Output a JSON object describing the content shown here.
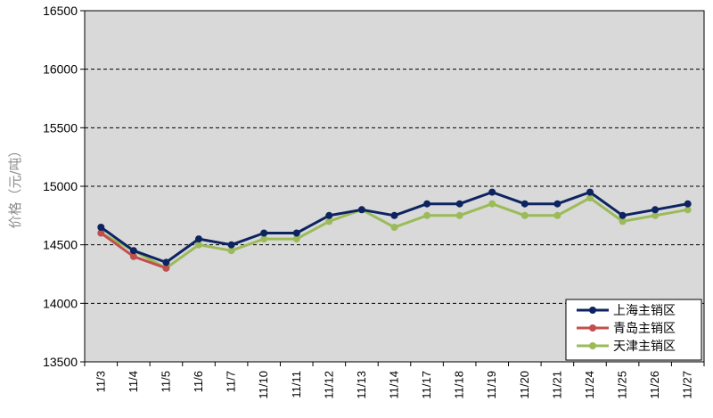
{
  "chart_data": {
    "type": "line",
    "title": "",
    "xlabel": "",
    "ylabel": "价格（元/吨）",
    "ylim": [
      13500,
      16500
    ],
    "yticks": [
      13500,
      14000,
      14500,
      15000,
      15500,
      16000,
      16500
    ],
    "grid": "horizontal-dashed",
    "legend_position": "bottom-right",
    "categories": [
      "11/3",
      "11/4",
      "11/5",
      "11/6",
      "11/7",
      "11/10",
      "11/11",
      "11/12",
      "11/13",
      "11/14",
      "11/17",
      "11/18",
      "11/19",
      "11/20",
      "11/21",
      "11/24",
      "11/25",
      "11/26",
      "11/27"
    ],
    "series": [
      {
        "name": "上海主销区",
        "color": "#0d2461",
        "values": [
          14650,
          14450,
          14350,
          14550,
          14500,
          14600,
          14600,
          14750,
          14800,
          14750,
          14850,
          14850,
          14950,
          14850,
          14850,
          14950,
          14750,
          14800,
          14850
        ]
      },
      {
        "name": "青岛主销区",
        "color": "#c0504d",
        "values": [
          14600,
          14400,
          14300,
          null,
          null,
          null,
          null,
          null,
          null,
          null,
          null,
          null,
          null,
          null,
          null,
          null,
          null,
          null,
          null
        ]
      },
      {
        "name": "天津主销区",
        "color": "#9bbb59",
        "values": [
          14600,
          14450,
          14300,
          14500,
          14450,
          14550,
          14550,
          14700,
          14800,
          14650,
          14750,
          14750,
          14850,
          14750,
          14750,
          14900,
          14700,
          14750,
          14800
        ]
      }
    ]
  }
}
